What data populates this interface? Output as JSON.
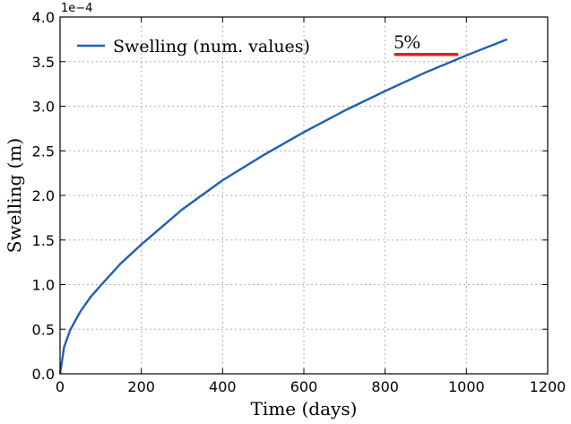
{
  "chart_data": {
    "type": "line",
    "title": "",
    "xlabel": "Time (days)",
    "ylabel": "Swelling (m)",
    "xlim": [
      0,
      1200
    ],
    "ylim": [
      0,
      4.0
    ],
    "y_offset_label": "1e−4",
    "x_ticks": [
      "0",
      "200",
      "400",
      "600",
      "800",
      "1000",
      "1200"
    ],
    "y_ticks": [
      "0.0",
      "0.5",
      "1.0",
      "1.5",
      "2.0",
      "2.5",
      "3.0",
      "3.5",
      "4.0"
    ],
    "grid": true,
    "legend_position": "top-left",
    "series": [
      {
        "name": "Swelling (num. values)",
        "color": "#1f5fb4",
        "x": [
          0,
          10,
          25,
          50,
          75,
          100,
          150,
          200,
          300,
          400,
          500,
          600,
          700,
          800,
          900,
          1000,
          1100
        ],
        "y": [
          0,
          0.3,
          0.49,
          0.7,
          0.86,
          0.99,
          1.24,
          1.45,
          1.84,
          2.17,
          2.45,
          2.71,
          2.95,
          3.17,
          3.38,
          3.57,
          3.75
        ]
      }
    ],
    "annotation": {
      "text": "5%",
      "color": "#ee1c1c",
      "x_start": 822,
      "x_end": 980,
      "y": 3.58
    }
  }
}
